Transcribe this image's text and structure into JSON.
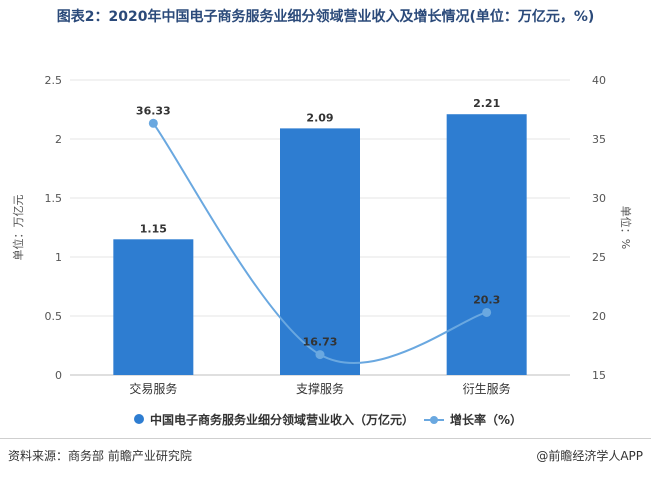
{
  "title": "图表2：2020年中国电子商务服务业细分领域营业收入及增长情况(单位：万亿元，%)",
  "footer": {
    "source": "资料来源：商务部 前瞻产业研究院",
    "brand": "@前瞻经济学人APP"
  },
  "colors": {
    "bar": "#2e7dd1",
    "line": "#6aa8e0",
    "title": "#2b4a7a"
  },
  "chart_data": {
    "type": "bar",
    "categories": [
      "交易服务",
      "支撑服务",
      "衍生服务"
    ],
    "series": [
      {
        "name": "中国电子商务服务业细分领域营业收入（万亿元）",
        "kind": "bar",
        "axis": "left",
        "values": [
          1.15,
          2.09,
          2.21
        ]
      },
      {
        "name": "增长率（%）",
        "kind": "line",
        "axis": "right",
        "values": [
          36.33,
          16.73,
          20.3
        ]
      }
    ],
    "ylabel": "单位：万亿元",
    "y2label": "单位：%",
    "ylim": [
      0,
      2.5
    ],
    "yticks": [
      "0",
      "0.5",
      "1",
      "1.5",
      "2",
      "2.5"
    ],
    "y2lim": [
      15,
      40
    ],
    "y2ticks": [
      "15",
      "20",
      "25",
      "30",
      "35",
      "40"
    ],
    "bar_labels": [
      "1.15",
      "2.09",
      "2.21"
    ],
    "line_labels": [
      "36.33",
      "16.73",
      "20.3"
    ],
    "legend": "bottom",
    "grid": true
  }
}
